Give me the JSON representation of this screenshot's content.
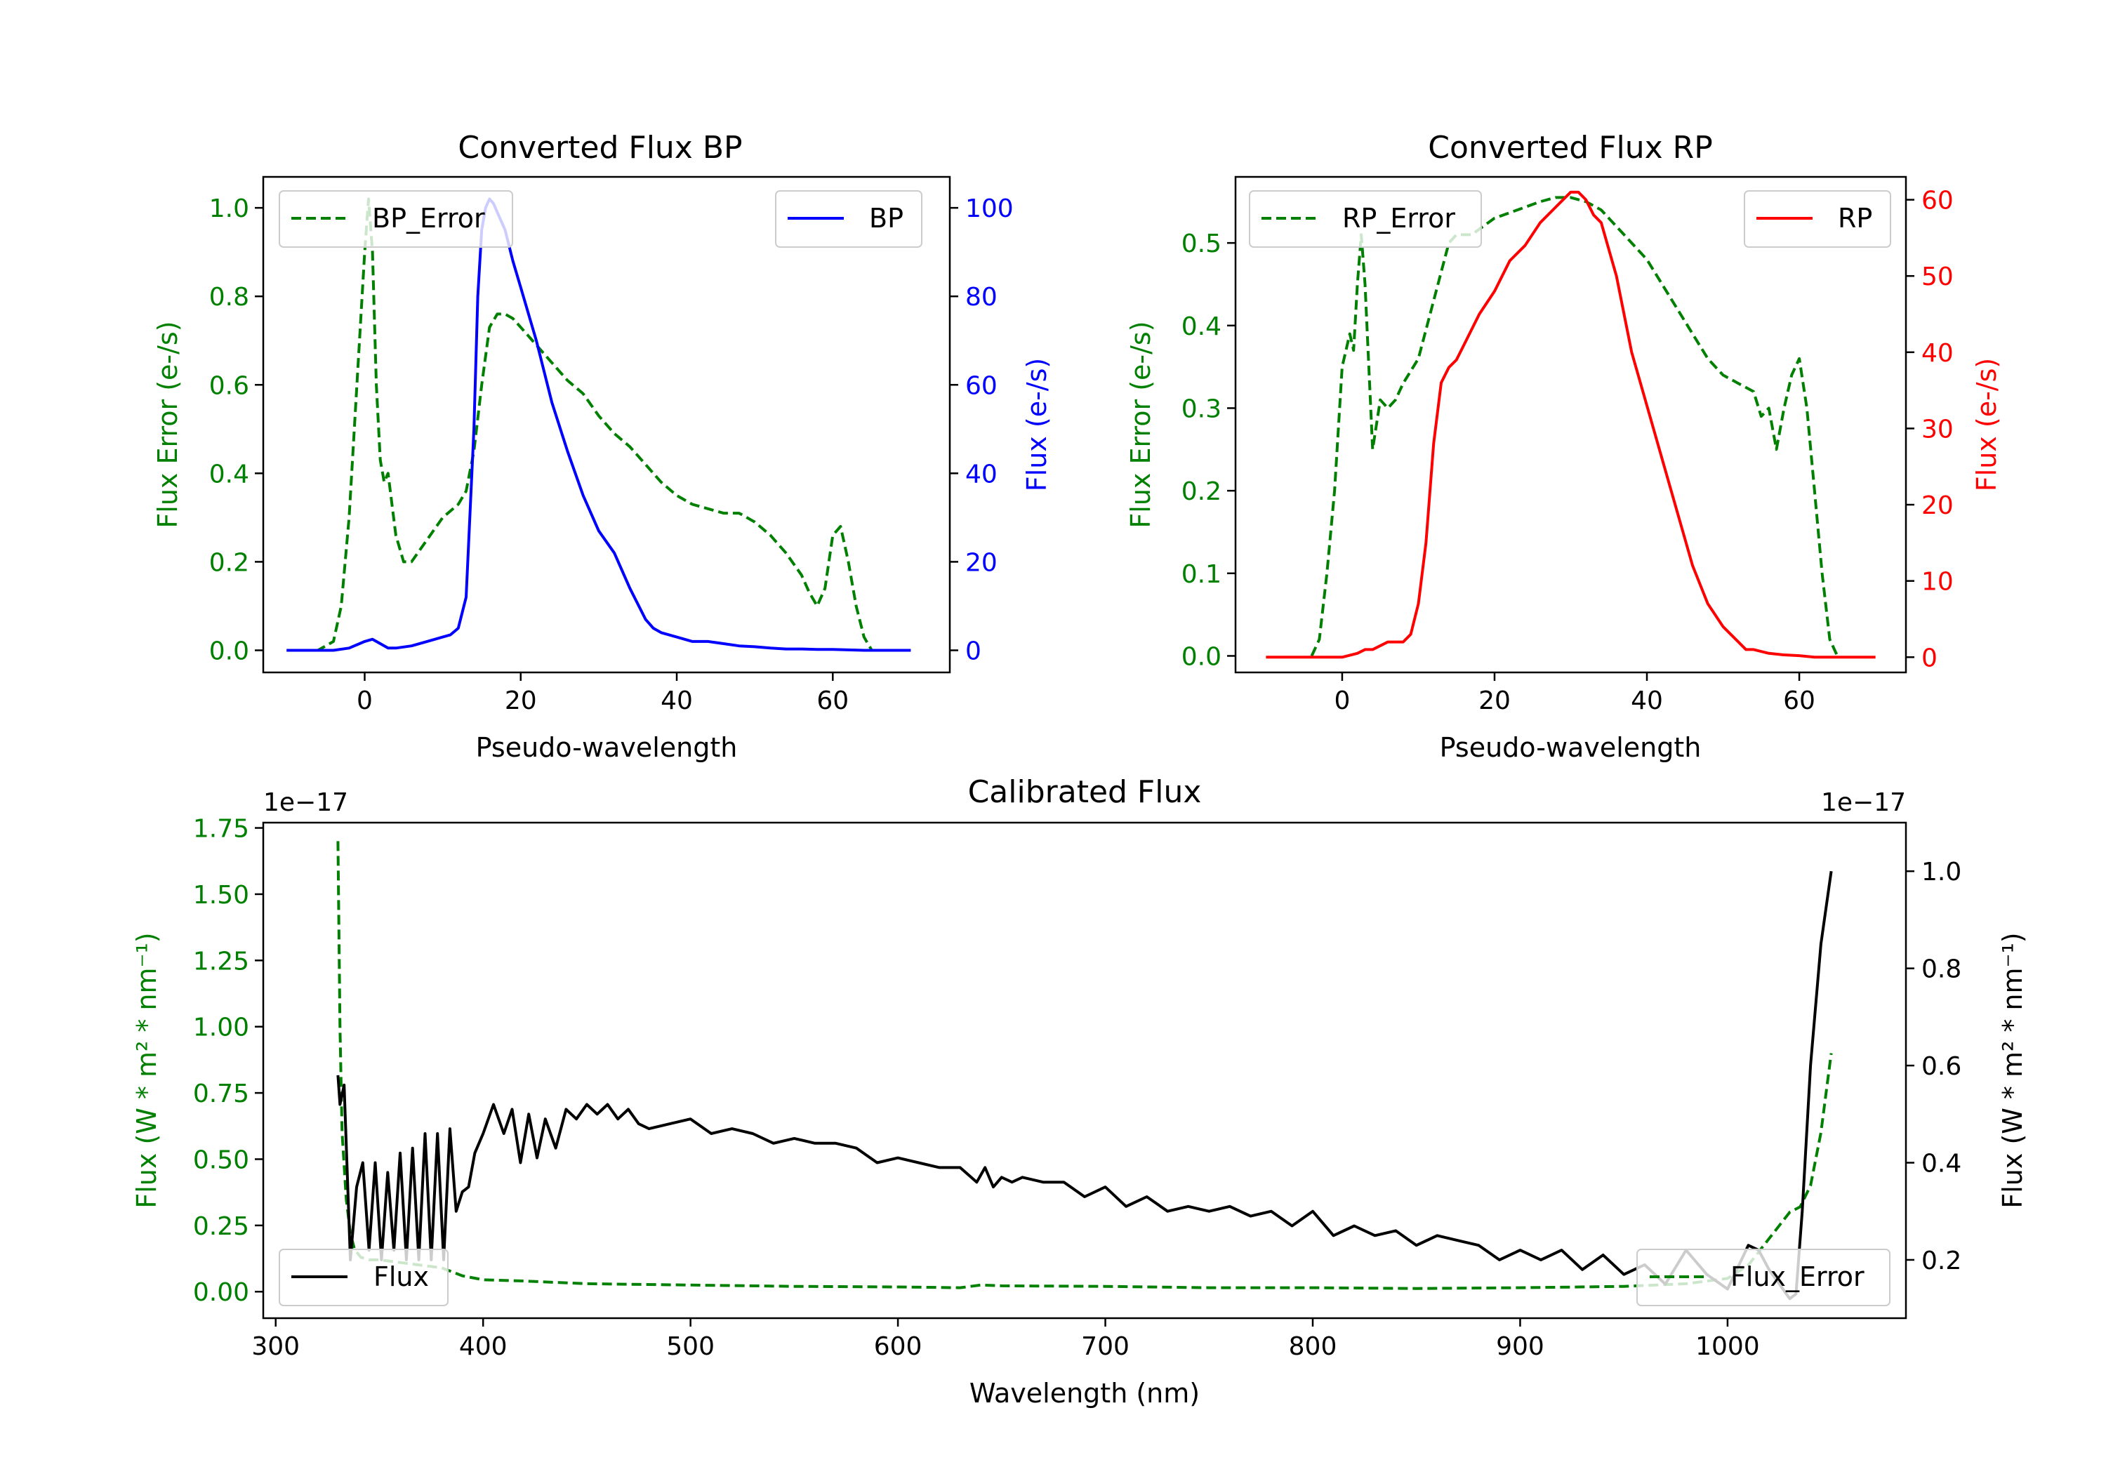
{
  "chart_data": [
    {
      "id": "bp",
      "type": "line",
      "title": "Converted Flux BP",
      "xlabel": "Pseudo-wavelength",
      "ylabel_left": "Flux Error (e-/s)",
      "ylabel_right": "Flux (e-/s)",
      "xlim": [
        -13,
        75
      ],
      "ylim_left": [
        -0.05,
        1.07
      ],
      "ylim_right": [
        -5,
        107
      ],
      "xticks": [
        0,
        20,
        40,
        60
      ],
      "yticks_left": [
        0.0,
        0.2,
        0.4,
        0.6,
        0.8,
        1.0
      ],
      "yticks_right": [
        0,
        20,
        40,
        60,
        80,
        100
      ],
      "colors": {
        "left": "#008000",
        "right": "#0000ff"
      },
      "series": [
        {
          "name": "BP_Error",
          "axis": "left",
          "style": "dashed",
          "color": "#008000",
          "x": [
            -10,
            -6,
            -4,
            -3,
            -2,
            -1,
            0,
            0.5,
            1,
            1.5,
            2,
            2.5,
            3,
            4,
            5,
            6,
            8,
            10,
            12,
            13,
            14,
            15,
            16,
            17,
            18,
            19,
            20,
            22,
            24,
            26,
            28,
            30,
            32,
            34,
            36,
            38,
            40,
            42,
            44,
            46,
            48,
            50,
            52,
            54,
            56,
            57,
            58,
            59,
            60,
            61,
            62,
            63,
            64,
            65
          ],
          "y": [
            0.0,
            0.0,
            0.02,
            0.1,
            0.3,
            0.6,
            0.9,
            1.02,
            0.9,
            0.6,
            0.43,
            0.38,
            0.4,
            0.26,
            0.2,
            0.2,
            0.25,
            0.3,
            0.33,
            0.36,
            0.45,
            0.6,
            0.73,
            0.76,
            0.76,
            0.75,
            0.73,
            0.69,
            0.65,
            0.61,
            0.58,
            0.53,
            0.49,
            0.46,
            0.42,
            0.38,
            0.35,
            0.33,
            0.32,
            0.31,
            0.31,
            0.29,
            0.26,
            0.22,
            0.17,
            0.13,
            0.1,
            0.14,
            0.26,
            0.28,
            0.2,
            0.1,
            0.03,
            0.0
          ]
        },
        {
          "name": "BP",
          "axis": "right",
          "style": "solid",
          "color": "#0000ff",
          "x": [
            -10,
            -4,
            -2,
            0,
            1,
            2,
            3,
            4,
            6,
            8,
            10,
            11,
            12,
            13,
            14,
            14.5,
            15,
            15.5,
            16,
            16.5,
            17,
            18,
            19,
            20,
            21,
            22,
            24,
            26,
            28,
            30,
            32,
            34,
            36,
            37,
            38,
            40,
            42,
            44,
            46,
            48,
            50,
            52,
            54,
            56,
            58,
            60,
            62,
            64,
            66,
            70
          ],
          "y": [
            0,
            0,
            0.5,
            2,
            2.5,
            1.5,
            0.5,
            0.5,
            1,
            2,
            3,
            3.5,
            5,
            12,
            50,
            80,
            95,
            100,
            102,
            101,
            99,
            95,
            88,
            82,
            76,
            70,
            56,
            45,
            35,
            27,
            22,
            14,
            7,
            5,
            4,
            3,
            2,
            2,
            1.5,
            1,
            0.8,
            0.5,
            0.3,
            0.3,
            0.2,
            0.2,
            0.1,
            0,
            0,
            0
          ]
        }
      ],
      "legend": [
        {
          "label": "BP_Error",
          "position": "upper-left"
        },
        {
          "label": "BP",
          "position": "upper-right"
        }
      ]
    },
    {
      "id": "rp",
      "type": "line",
      "title": "Converted Flux RP",
      "xlabel": "Pseudo-wavelength",
      "ylabel_left": "Flux Error (e-/s)",
      "ylabel_right": "Flux (e-/s)",
      "xlim": [
        -14,
        74
      ],
      "ylim_left": [
        -0.02,
        0.58
      ],
      "ylim_right": [
        -2,
        63
      ],
      "xticks": [
        0,
        20,
        40,
        60
      ],
      "yticks_left": [
        0.0,
        0.1,
        0.2,
        0.3,
        0.4,
        0.5
      ],
      "yticks_right": [
        0,
        10,
        20,
        30,
        40,
        50,
        60
      ],
      "colors": {
        "left": "#008000",
        "right": "#ff0000"
      },
      "series": [
        {
          "name": "RP_Error",
          "axis": "left",
          "style": "dashed",
          "color": "#008000",
          "x": [
            -4,
            -3,
            -2,
            -1,
            0,
            1,
            1.5,
            2,
            2.5,
            3,
            3.5,
            4,
            5,
            6,
            7,
            8,
            10,
            12,
            14,
            15,
            17,
            20,
            23,
            26,
            28,
            30,
            32,
            34,
            36,
            38,
            40,
            42,
            44,
            46,
            48,
            50,
            52,
            54,
            55,
            56,
            57,
            58,
            59,
            60,
            61,
            62,
            63,
            64,
            65
          ],
          "y": [
            0.0,
            0.02,
            0.1,
            0.2,
            0.35,
            0.39,
            0.37,
            0.45,
            0.51,
            0.45,
            0.35,
            0.25,
            0.31,
            0.3,
            0.31,
            0.33,
            0.36,
            0.43,
            0.5,
            0.51,
            0.51,
            0.53,
            0.54,
            0.55,
            0.555,
            0.555,
            0.55,
            0.54,
            0.52,
            0.5,
            0.48,
            0.45,
            0.42,
            0.39,
            0.36,
            0.34,
            0.33,
            0.32,
            0.29,
            0.3,
            0.25,
            0.3,
            0.34,
            0.36,
            0.3,
            0.2,
            0.1,
            0.02,
            0.0
          ]
        },
        {
          "name": "RP",
          "axis": "right",
          "style": "solid",
          "color": "#ff0000",
          "x": [
            -10,
            -2,
            0,
            2,
            3,
            4,
            6,
            8,
            9,
            10,
            11,
            12,
            13,
            14,
            15,
            16,
            18,
            20,
            22,
            24,
            26,
            28,
            29,
            30,
            31,
            32,
            33,
            34,
            36,
            38,
            40,
            42,
            44,
            46,
            48,
            50,
            52,
            53,
            54,
            56,
            58,
            60,
            62,
            64,
            66,
            70
          ],
          "y": [
            0,
            0,
            0,
            0.5,
            1,
            1,
            2,
            2,
            3,
            7,
            15,
            28,
            36,
            38,
            39,
            41,
            45,
            48,
            52,
            54,
            57,
            59,
            60,
            61,
            61,
            60,
            58,
            57,
            50,
            40,
            33,
            26,
            19,
            12,
            7,
            4,
            2,
            1,
            1,
            0.5,
            0.3,
            0.2,
            0,
            0,
            0,
            0
          ]
        }
      ],
      "legend": [
        {
          "label": "RP_Error",
          "position": "upper-left"
        },
        {
          "label": "RP",
          "position": "upper-right"
        }
      ]
    },
    {
      "id": "calibrated",
      "type": "line",
      "title": "Calibrated Flux",
      "xlabel": "Wavelength (nm)",
      "ylabel_left": "Flux (W * m² * nm⁻¹)",
      "ylabel_right": "Flux (W * m² * nm⁻¹)",
      "offset_left": "1e−17",
      "offset_right": "1e−17",
      "xlim": [
        294,
        1086
      ],
      "ylim_left": [
        -0.1,
        1.77
      ],
      "ylim_right": [
        0.08,
        1.1
      ],
      "xticks": [
        300,
        400,
        500,
        600,
        700,
        800,
        900,
        1000
      ],
      "yticks_left": [
        0.0,
        0.25,
        0.5,
        0.75,
        1.0,
        1.25,
        1.5,
        1.75
      ],
      "ytick_labels_left": [
        "0.00",
        "0.25",
        "0.50",
        "0.75",
        "1.00",
        "1.25",
        "1.50",
        "1.75"
      ],
      "yticks_right": [
        0.2,
        0.4,
        0.6,
        0.8,
        1.0
      ],
      "ytick_labels_right": [
        "0.2",
        "0.4",
        "0.6",
        "0.8",
        "1.0"
      ],
      "colors": {
        "left": "#008000",
        "right": "#000000"
      },
      "series": [
        {
          "name": "Flux_Error",
          "axis": "left",
          "style": "dashed",
          "color": "#008000",
          "x": [
            330,
            331,
            332,
            334,
            336,
            338,
            341,
            345,
            350,
            360,
            370,
            380,
            390,
            400,
            420,
            450,
            500,
            550,
            600,
            630,
            640,
            650,
            700,
            750,
            800,
            850,
            900,
            950,
            980,
            1000,
            1010,
            1020,
            1030,
            1035,
            1040,
            1045,
            1050
          ],
          "y": [
            1.7,
            1.0,
            0.6,
            0.35,
            0.22,
            0.16,
            0.13,
            0.12,
            0.12,
            0.11,
            0.1,
            0.09,
            0.06,
            0.045,
            0.04,
            0.03,
            0.025,
            0.02,
            0.018,
            0.015,
            0.025,
            0.022,
            0.02,
            0.015,
            0.015,
            0.012,
            0.015,
            0.02,
            0.03,
            0.05,
            0.1,
            0.2,
            0.3,
            0.32,
            0.4,
            0.6,
            0.9
          ]
        },
        {
          "name": "Flux",
          "axis": "right",
          "style": "solid",
          "color": "#000000",
          "x": [
            330,
            331,
            333,
            336,
            339,
            342,
            345,
            348,
            351,
            354,
            357,
            360,
            363,
            366,
            369,
            372,
            375,
            378,
            381,
            384,
            387,
            390,
            393,
            396,
            400,
            405,
            410,
            414,
            418,
            422,
            426,
            430,
            435,
            440,
            445,
            450,
            455,
            460,
            465,
            470,
            475,
            480,
            490,
            500,
            510,
            520,
            530,
            540,
            550,
            560,
            570,
            580,
            590,
            600,
            610,
            620,
            630,
            638,
            642,
            646,
            650,
            655,
            660,
            670,
            680,
            690,
            700,
            710,
            720,
            730,
            740,
            750,
            760,
            770,
            780,
            790,
            800,
            810,
            820,
            830,
            840,
            850,
            860,
            870,
            880,
            890,
            900,
            910,
            920,
            930,
            940,
            950,
            960,
            970,
            980,
            990,
            1000,
            1010,
            1015,
            1020,
            1025,
            1030,
            1033,
            1036,
            1040,
            1045,
            1050
          ],
          "y": [
            0.58,
            0.52,
            0.56,
            0.2,
            0.35,
            0.4,
            0.22,
            0.4,
            0.2,
            0.38,
            0.22,
            0.42,
            0.2,
            0.43,
            0.2,
            0.46,
            0.2,
            0.46,
            0.2,
            0.47,
            0.3,
            0.34,
            0.35,
            0.42,
            0.46,
            0.52,
            0.46,
            0.51,
            0.4,
            0.5,
            0.41,
            0.49,
            0.43,
            0.51,
            0.49,
            0.52,
            0.5,
            0.52,
            0.49,
            0.51,
            0.48,
            0.47,
            0.48,
            0.49,
            0.46,
            0.47,
            0.46,
            0.44,
            0.45,
            0.44,
            0.44,
            0.43,
            0.4,
            0.41,
            0.4,
            0.39,
            0.39,
            0.36,
            0.39,
            0.35,
            0.37,
            0.36,
            0.37,
            0.36,
            0.36,
            0.33,
            0.35,
            0.31,
            0.33,
            0.3,
            0.31,
            0.3,
            0.31,
            0.29,
            0.3,
            0.27,
            0.3,
            0.25,
            0.27,
            0.25,
            0.26,
            0.23,
            0.25,
            0.24,
            0.23,
            0.2,
            0.22,
            0.2,
            0.22,
            0.18,
            0.21,
            0.17,
            0.19,
            0.15,
            0.22,
            0.17,
            0.14,
            0.23,
            0.22,
            0.18,
            0.15,
            0.12,
            0.13,
            0.3,
            0.6,
            0.85,
            1.0
          ]
        }
      ],
      "legend": [
        {
          "label": "Flux",
          "position": "lower-left"
        },
        {
          "label": "Flux_Error",
          "position": "lower-right"
        }
      ]
    }
  ]
}
